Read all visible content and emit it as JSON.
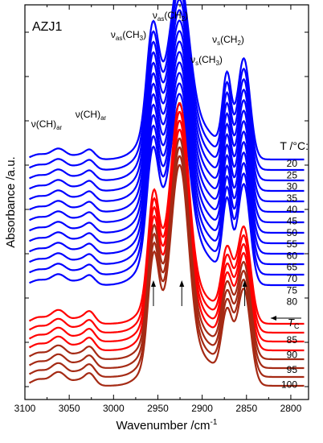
{
  "chart_data": {
    "type": "line",
    "panel_label": "AZJ1",
    "xlabel": "Wavenumber /cm⁻¹",
    "ylabel": "Absorbance /a.u.",
    "x_reversed": true,
    "xlim": [
      3100,
      2780
    ],
    "xticks": [
      3100,
      3050,
      3000,
      2950,
      2900,
      2850,
      2800
    ],
    "x_tick_labels": [
      "3100",
      "3050",
      "3000",
      "2950",
      "2900",
      "2850",
      "2800"
    ],
    "y_tick_labels_shown": false,
    "legend_title": "T /°C:",
    "transition_label": "T_C",
    "band_labels": [
      {
        "text": "ν(CH)",
        "sub": "ar",
        "x": 3058
      },
      {
        "text": "ν(CH)",
        "sub": "ar",
        "x": 3020
      },
      {
        "text": "νas(CH3)",
        "x": 2955
      },
      {
        "text": "νas(CH2)",
        "x": 2923
      },
      {
        "text": "νs(CH3)",
        "x": 2871
      },
      {
        "text": "νs(CH2)",
        "x": 2852
      }
    ],
    "marker_arrows_at_x": [
      2955,
      2923,
      2852
    ],
    "series": [
      {
        "name": "20",
        "color": "#0000ff",
        "phase": "blue"
      },
      {
        "name": "25",
        "color": "#0000ff",
        "phase": "blue"
      },
      {
        "name": "30",
        "color": "#0000ff",
        "phase": "blue"
      },
      {
        "name": "35",
        "color": "#0000ff",
        "phase": "blue"
      },
      {
        "name": "40",
        "color": "#0000ff",
        "phase": "blue"
      },
      {
        "name": "45",
        "color": "#0000ff",
        "phase": "blue"
      },
      {
        "name": "50",
        "color": "#0000ff",
        "phase": "blue"
      },
      {
        "name": "55",
        "color": "#0000ff",
        "phase": "blue"
      },
      {
        "name": "60",
        "color": "#0000ff",
        "phase": "blue"
      },
      {
        "name": "65",
        "color": "#0000ff",
        "phase": "blue"
      },
      {
        "name": "70",
        "color": "#0000ff",
        "phase": "blue"
      },
      {
        "name": "75",
        "color": "#0000ff",
        "phase": "blue"
      },
      {
        "name": "80",
        "color": "#0000ff",
        "phase": "blue"
      },
      {
        "name": "85",
        "color": "#ff0000",
        "phase": "red"
      },
      {
        "name": "90",
        "color": "#ff0000",
        "phase": "red"
      },
      {
        "name": "95",
        "color": "#ff0000",
        "phase": "red"
      },
      {
        "name": "100",
        "color": "#ff0000",
        "phase": "red"
      },
      {
        "name": "",
        "color": "#a52a14",
        "phase": "brown"
      },
      {
        "name": "",
        "color": "#a52a14",
        "phase": "brown"
      },
      {
        "name": "",
        "color": "#a52a14",
        "phase": "brown"
      },
      {
        "name": "",
        "color": "#a52a14",
        "phase": "brown"
      }
    ],
    "temperature_labels": [
      "20",
      "25",
      "30",
      "35",
      "40",
      "45",
      "50",
      "55",
      "60",
      "65",
      "70",
      "75",
      "80",
      "85",
      "90",
      "95",
      "100"
    ],
    "colors": {
      "blue": "#0000ff",
      "red": "#ff0000",
      "brown": "#a52a14"
    }
  }
}
